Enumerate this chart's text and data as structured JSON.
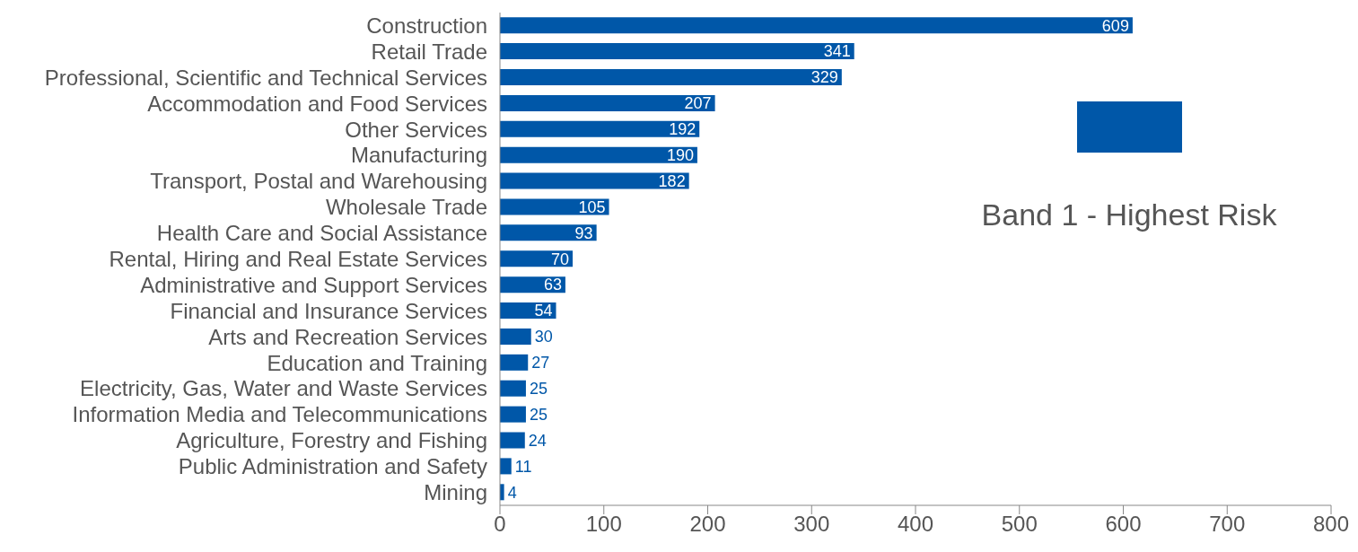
{
  "chart_data": {
    "type": "bar",
    "orientation": "horizontal",
    "categories": [
      "Construction",
      "Retail Trade",
      "Professional, Scientific and Technical Services",
      "Accommodation and Food Services",
      "Other Services",
      "Manufacturing",
      "Transport, Postal and Warehousing",
      "Wholesale Trade",
      "Health Care and Social Assistance",
      "Rental, Hiring and Real Estate Services",
      "Administrative and Support Services",
      "Financial and Insurance Services",
      "Arts and Recreation Services",
      "Education and Training",
      "Electricity, Gas, Water and Waste Services",
      "Information Media and Telecommunications",
      "Agriculture, Forestry and Fishing",
      "Public Administration and Safety",
      "Mining"
    ],
    "series": [
      {
        "name": "Band 1 - Highest Risk",
        "color": "#0057a8",
        "values": [
          609,
          341,
          329,
          207,
          192,
          190,
          182,
          105,
          93,
          70,
          63,
          54,
          30,
          27,
          25,
          25,
          24,
          11,
          4
        ]
      }
    ],
    "xlim": [
      0,
      800
    ],
    "xticks": [
      0,
      100,
      200,
      300,
      400,
      500,
      600,
      700,
      800
    ],
    "data_labels": true,
    "legend": "right",
    "grid": false
  }
}
